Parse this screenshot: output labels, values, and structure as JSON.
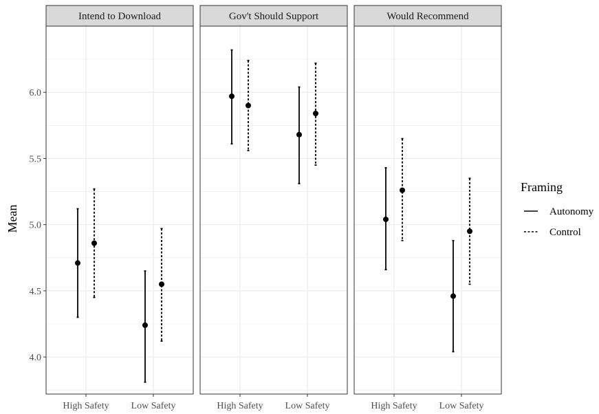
{
  "chart_data": {
    "type": "errorbar",
    "facets": [
      {
        "title": "Intend to Download",
        "points": [
          {
            "category": "High Safety",
            "series": "Autonomy",
            "mean": 4.71,
            "lower": 4.3,
            "upper": 5.12
          },
          {
            "category": "High Safety",
            "series": "Control",
            "mean": 4.86,
            "lower": 4.45,
            "upper": 5.27
          },
          {
            "category": "Low Safety",
            "series": "Autonomy",
            "mean": 4.24,
            "lower": 3.81,
            "upper": 4.65
          },
          {
            "category": "Low Safety",
            "series": "Control",
            "mean": 4.55,
            "lower": 4.12,
            "upper": 4.97
          }
        ]
      },
      {
        "title": "Gov't Should Support",
        "points": [
          {
            "category": "High Safety",
            "series": "Autonomy",
            "mean": 5.97,
            "lower": 5.61,
            "upper": 6.32
          },
          {
            "category": "High Safety",
            "series": "Control",
            "mean": 5.9,
            "lower": 5.56,
            "upper": 6.24
          },
          {
            "category": "Low Safety",
            "series": "Autonomy",
            "mean": 5.68,
            "lower": 5.31,
            "upper": 6.04
          },
          {
            "category": "Low Safety",
            "series": "Control",
            "mean": 5.84,
            "lower": 5.45,
            "upper": 6.22
          }
        ]
      },
      {
        "title": "Would Recommend",
        "points": [
          {
            "category": "High Safety",
            "series": "Autonomy",
            "mean": 5.04,
            "lower": 4.66,
            "upper": 5.43
          },
          {
            "category": "High Safety",
            "series": "Control",
            "mean": 5.26,
            "lower": 4.88,
            "upper": 5.65
          },
          {
            "category": "Low Safety",
            "series": "Autonomy",
            "mean": 4.46,
            "lower": 4.04,
            "upper": 4.88
          },
          {
            "category": "Low Safety",
            "series": "Control",
            "mean": 4.95,
            "lower": 4.55,
            "upper": 5.35
          }
        ]
      }
    ],
    "categories": [
      "High Safety",
      "Low Safety"
    ],
    "ylabel": "Mean",
    "ylim": [
      3.72,
      6.5
    ],
    "yticks": [
      4.0,
      4.5,
      5.0,
      5.5,
      6.0
    ],
    "ytick_labels": [
      "4.0",
      "4.5",
      "5.0",
      "5.5",
      "6.0"
    ],
    "grid": true,
    "legend": {
      "title": "Framing",
      "placement": "right",
      "entries": [
        {
          "name": "Autonomy",
          "line_style": "solid"
        },
        {
          "name": "Control",
          "line_style": "dashed"
        }
      ]
    },
    "colors": {
      "marks": "#000000",
      "grid": "#ebebeb",
      "strip_fill": "#d9d9d9",
      "panel_border": "#333333"
    }
  }
}
